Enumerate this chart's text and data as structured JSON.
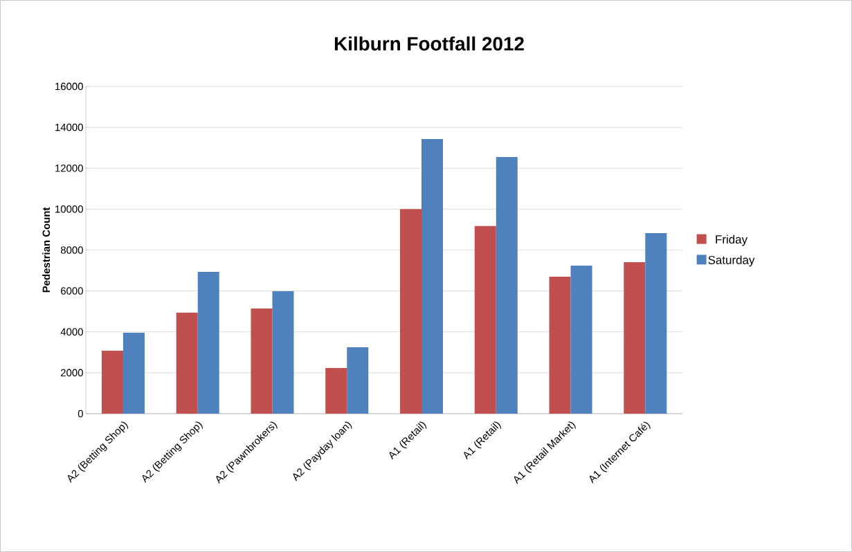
{
  "chart_data": {
    "type": "bar",
    "title": "Kilburn Footfall 2012",
    "ylabel": "Pedestrian Count",
    "categories": [
      "A2 (Betting Shop)",
      "A2 (Betting Shop)",
      "A2 (Pawnbrokers)",
      "A2 (Payday loan)",
      "A1 (Retail)",
      "A1 (Retail)",
      "A1 (Retail Market)",
      "A1 (Internet Café)"
    ],
    "series": [
      {
        "name": "Friday",
        "color": "#c0504d",
        "values": [
          3080,
          4940,
          5140,
          2230,
          10000,
          9170,
          6700,
          7410
        ]
      },
      {
        "name": "Saturday",
        "color": "#4f81bd",
        "values": [
          3960,
          6930,
          5990,
          3250,
          13430,
          12550,
          7240,
          8830
        ]
      }
    ],
    "ylim": [
      0,
      16000
    ],
    "yticks": [
      0,
      2000,
      4000,
      6000,
      8000,
      10000,
      12000,
      14000,
      16000
    ],
    "grid": "y",
    "legend": "right"
  }
}
